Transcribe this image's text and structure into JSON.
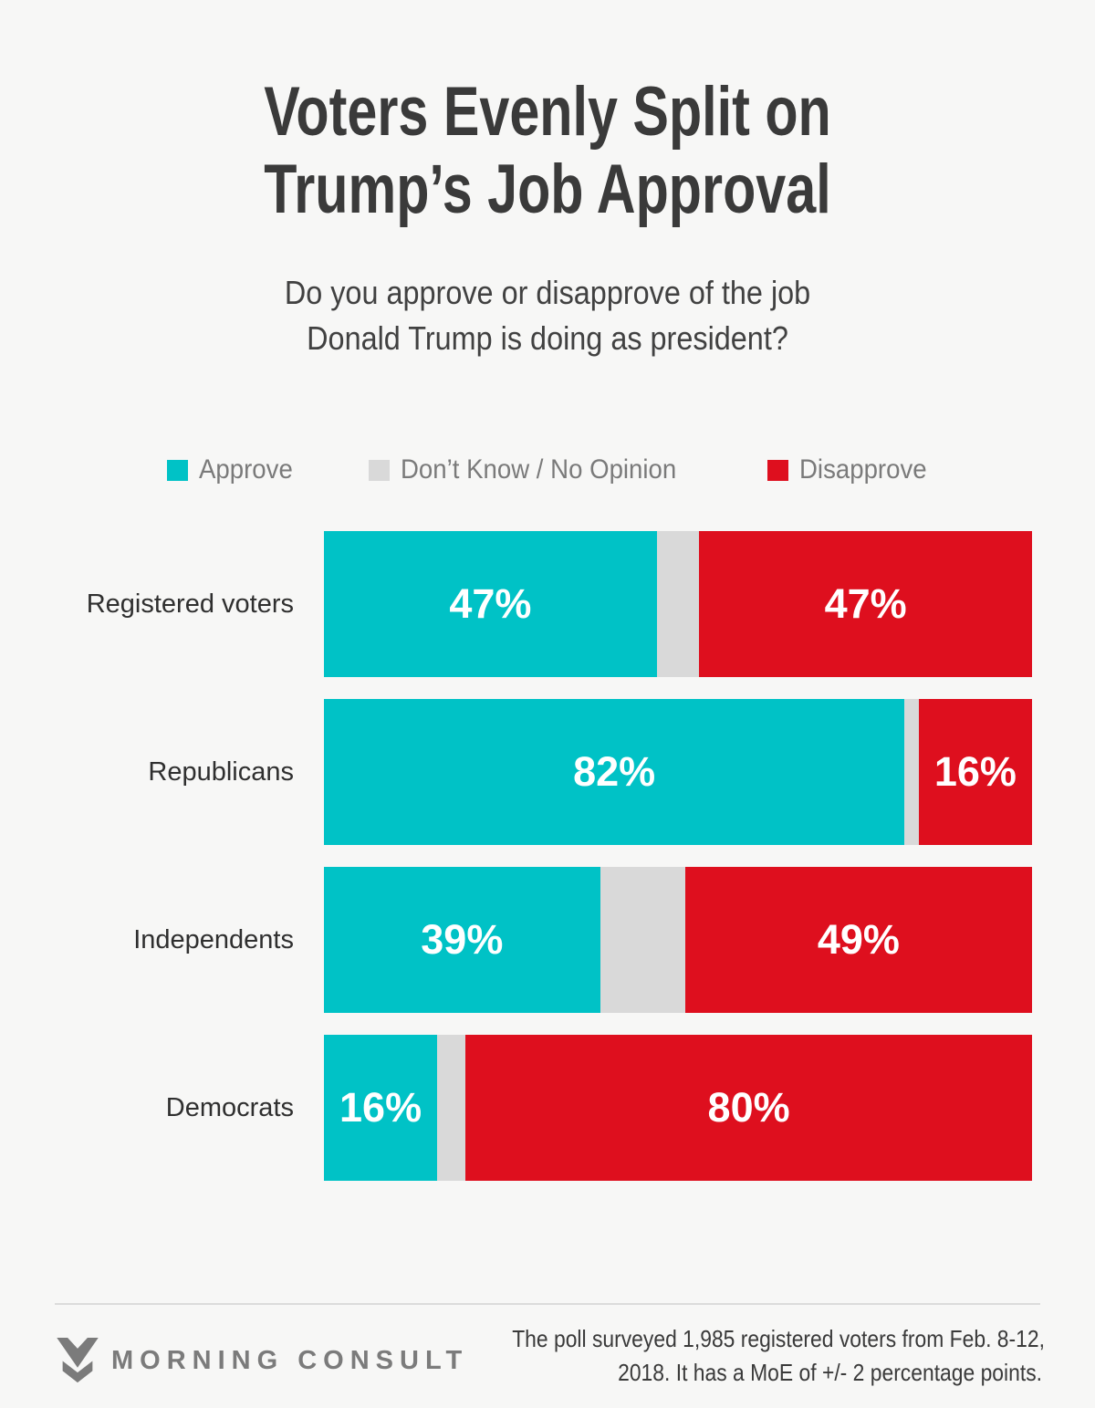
{
  "colors": {
    "background": "#F7F7F6",
    "approve": "#00C2C6",
    "dont_know": "#D9D9D9",
    "disapprove": "#DE0F1E",
    "title_text": "#3A3A3A",
    "legend_text": "#7A7A7A",
    "bar_label_text": "#FFFFFF",
    "footer_gray": "#7B7B7B"
  },
  "title": {
    "line1": "Voters Evenly Split on",
    "line2": "Trump’s Job Approval"
  },
  "subtitle": {
    "line1": "Do you approve or disapprove of the job",
    "line2": "Donald Trump is doing as president?"
  },
  "legend": {
    "items": [
      {
        "label": "Approve",
        "color": "#00C2C6"
      },
      {
        "label": "Don’t Know / No Opinion",
        "color": "#D9D9D9"
      },
      {
        "label": "Disapprove",
        "color": "#DE0F1E"
      }
    ]
  },
  "chart_data": {
    "type": "bar",
    "orientation": "horizontal",
    "stacked": true,
    "units": "percent",
    "xlim": [
      0,
      100
    ],
    "grid": false,
    "legend_position": "top",
    "categories": [
      "Registered voters",
      "Republicans",
      "Independents",
      "Democrats"
    ],
    "series": [
      {
        "name": "Approve",
        "color": "#00C2C6",
        "values": [
          47,
          82,
          39,
          16
        ],
        "labels_shown": true
      },
      {
        "name": "Don’t Know / No Opinion",
        "color": "#D9D9D9",
        "values": [
          6,
          2,
          12,
          4
        ],
        "labels_shown": false
      },
      {
        "name": "Disapprove",
        "color": "#DE0F1E",
        "values": [
          47,
          16,
          49,
          80
        ],
        "labels_shown": true
      }
    ],
    "value_label_format": "{value}%"
  },
  "footer": {
    "brand": "MORNING CONSULT",
    "logo_icon": "morning-consult-m-icon",
    "note_line1": "The poll surveyed 1,985 registered voters from Feb. 8-12,",
    "note_line2": "2018. It has a MoE of +/- 2 percentage points."
  }
}
